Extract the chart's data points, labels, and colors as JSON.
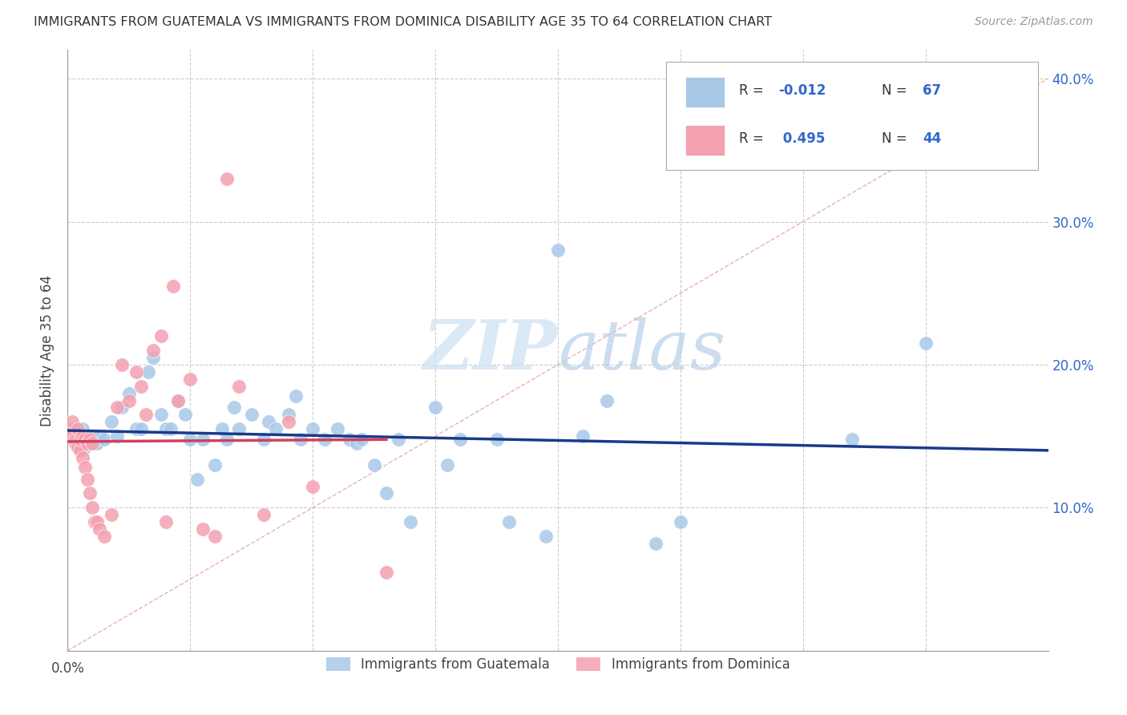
{
  "title": "IMMIGRANTS FROM GUATEMALA VS IMMIGRANTS FROM DOMINICA DISABILITY AGE 35 TO 64 CORRELATION CHART",
  "source": "Source: ZipAtlas.com",
  "ylabel": "Disability Age 35 to 64",
  "xlim": [
    0.0,
    0.4
  ],
  "ylim": [
    0.0,
    0.42
  ],
  "yticks": [
    0.0,
    0.1,
    0.2,
    0.3,
    0.4
  ],
  "ytick_labels": [
    "",
    "10.0%",
    "20.0%",
    "30.0%",
    "40.0%"
  ],
  "xticks": [
    0.0,
    0.05,
    0.1,
    0.15,
    0.2,
    0.25,
    0.3,
    0.35,
    0.4
  ],
  "legend_label1": "Immigrants from Guatemala",
  "legend_label2": "Immigrants from Dominica",
  "blue_scatter_color": "#a8c8e8",
  "pink_scatter_color": "#f4a0b0",
  "blue_line_color": "#1a3a8a",
  "pink_line_color": "#d04060",
  "diagonal_color": "#e8b0b8",
  "watermark": "ZIPatlas",
  "watermark_zip_color": "#ddeeff",
  "watermark_atlas_color": "#c8d8e8",
  "guat_x": [
    0.003,
    0.004,
    0.004,
    0.005,
    0.005,
    0.006,
    0.006,
    0.007,
    0.007,
    0.008,
    0.009,
    0.01,
    0.011,
    0.012,
    0.013,
    0.015,
    0.018,
    0.02,
    0.022,
    0.025,
    0.028,
    0.03,
    0.033,
    0.035,
    0.038,
    0.04,
    0.042,
    0.045,
    0.048,
    0.05,
    0.053,
    0.055,
    0.06,
    0.063,
    0.065,
    0.068,
    0.07,
    0.075,
    0.08,
    0.082,
    0.085,
    0.09,
    0.093,
    0.095,
    0.1,
    0.105,
    0.11,
    0.115,
    0.118,
    0.12,
    0.125,
    0.13,
    0.135,
    0.14,
    0.15,
    0.155,
    0.16,
    0.175,
    0.18,
    0.195,
    0.2,
    0.21,
    0.22,
    0.24,
    0.25,
    0.32,
    0.35
  ],
  "guat_y": [
    0.145,
    0.148,
    0.152,
    0.143,
    0.15,
    0.147,
    0.155,
    0.142,
    0.15,
    0.148,
    0.145,
    0.15,
    0.148,
    0.145,
    0.15,
    0.148,
    0.16,
    0.15,
    0.17,
    0.18,
    0.155,
    0.155,
    0.195,
    0.205,
    0.165,
    0.155,
    0.155,
    0.175,
    0.165,
    0.148,
    0.12,
    0.148,
    0.13,
    0.155,
    0.148,
    0.17,
    0.155,
    0.165,
    0.148,
    0.16,
    0.155,
    0.165,
    0.178,
    0.148,
    0.155,
    0.148,
    0.155,
    0.148,
    0.145,
    0.148,
    0.13,
    0.11,
    0.148,
    0.09,
    0.17,
    0.13,
    0.148,
    0.148,
    0.09,
    0.08,
    0.28,
    0.15,
    0.175,
    0.075,
    0.09,
    0.148,
    0.215
  ],
  "dom_x": [
    0.001,
    0.002,
    0.002,
    0.003,
    0.003,
    0.004,
    0.004,
    0.005,
    0.005,
    0.006,
    0.006,
    0.007,
    0.007,
    0.008,
    0.008,
    0.009,
    0.009,
    0.01,
    0.01,
    0.011,
    0.012,
    0.013,
    0.015,
    0.018,
    0.02,
    0.022,
    0.025,
    0.028,
    0.03,
    0.032,
    0.035,
    0.038,
    0.04,
    0.043,
    0.045,
    0.05,
    0.055,
    0.06,
    0.065,
    0.07,
    0.08,
    0.09,
    0.1,
    0.13
  ],
  "dom_y": [
    0.155,
    0.15,
    0.16,
    0.145,
    0.148,
    0.142,
    0.155,
    0.14,
    0.148,
    0.135,
    0.15,
    0.128,
    0.148,
    0.12,
    0.145,
    0.11,
    0.148,
    0.1,
    0.145,
    0.09,
    0.09,
    0.085,
    0.08,
    0.095,
    0.17,
    0.2,
    0.175,
    0.195,
    0.185,
    0.165,
    0.21,
    0.22,
    0.09,
    0.255,
    0.175,
    0.19,
    0.085,
    0.08,
    0.33,
    0.185,
    0.095,
    0.16,
    0.115,
    0.055
  ]
}
